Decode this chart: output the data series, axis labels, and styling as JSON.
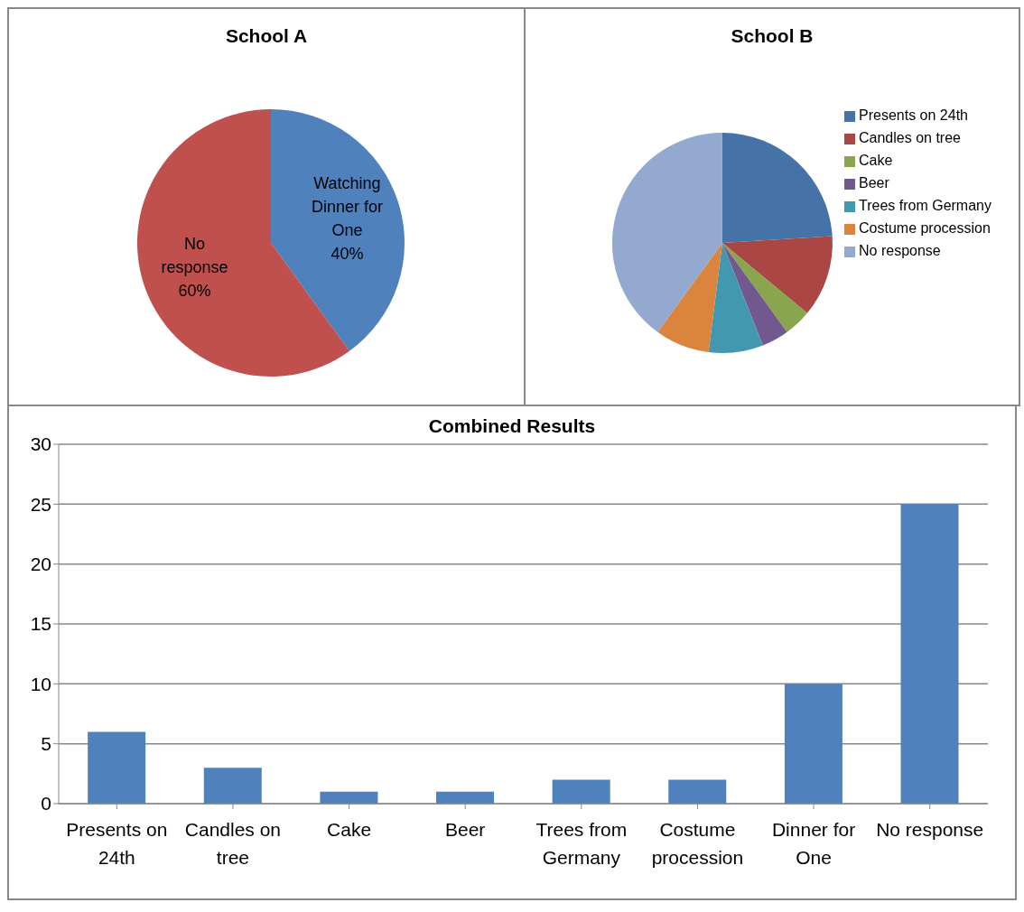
{
  "chart_data": [
    {
      "type": "pie",
      "title": "School A",
      "categories": [
        "Watching Dinner for One",
        "No response"
      ],
      "values": [
        40,
        60
      ],
      "colors": [
        "#4f81bd",
        "#c0504d"
      ],
      "value_labels": [
        "40%",
        "60%"
      ],
      "legend": false
    },
    {
      "type": "pie",
      "title": "School B",
      "categories": [
        "Presents on 24th",
        "Candles on tree",
        "Cake",
        "Beer",
        "Trees from Germany",
        "Costume procession",
        "No response"
      ],
      "values": [
        24,
        12,
        4,
        4,
        8,
        8,
        40
      ],
      "colors": [
        "#4572a7",
        "#aa4643",
        "#89a54e",
        "#71588f",
        "#4198af",
        "#db843d",
        "#93a9cf"
      ],
      "legend": "right"
    },
    {
      "type": "bar",
      "title": "Combined Results",
      "categories": [
        "Presents on 24th",
        "Candles on tree",
        "Cake",
        "Beer",
        "Trees from Germany",
        "Costume procession",
        "Dinner for One",
        "No response"
      ],
      "values": [
        6,
        3,
        1,
        1,
        2,
        2,
        10,
        25
      ],
      "color": "#4f81bd",
      "ylim": [
        0,
        30
      ],
      "yticks": [
        0,
        5,
        10,
        15,
        20,
        25,
        30
      ],
      "grid": "y",
      "legend": false
    }
  ]
}
